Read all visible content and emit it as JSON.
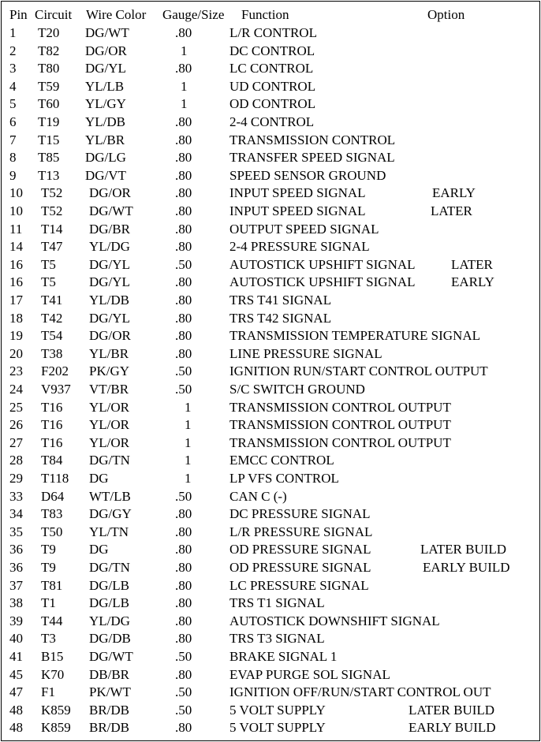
{
  "header": {
    "pin": "Pin",
    "circuit": "Circuit",
    "wire_color": "Wire Color",
    "gauge": "Gauge/Size",
    "function": "Function",
    "option": "Option"
  },
  "rows": [
    {
      "pin": "1",
      "circuit": "T20",
      "wire": "DG/WT",
      "gauge": ".80",
      "function": "L/R CONTROL",
      "option": ""
    },
    {
      "pin": "2",
      "circuit": "T82",
      "wire": "DG/OR",
      "gauge": "1",
      "function": "DC CONTROL",
      "option": ""
    },
    {
      "pin": "3",
      "circuit": "T80",
      "wire": "DG/YL",
      "gauge": ".80",
      "function": "LC CONTROL",
      "option": ""
    },
    {
      "pin": "4",
      "circuit": "T59",
      "wire": "YL/LB",
      "gauge": "1",
      "function": "UD CONTROL",
      "option": ""
    },
    {
      "pin": "5",
      "circuit": "T60",
      "wire": "YL/GY",
      "gauge": "1",
      "function": "OD CONTROL",
      "option": ""
    },
    {
      "pin": "6",
      "circuit": "T19",
      "wire": "YL/DB",
      "gauge": ".80",
      "function": "2-4 CONTROL",
      "option": ""
    },
    {
      "pin": "7",
      "circuit": "T15",
      "wire": "YL/BR",
      "gauge": ".80",
      "function": "TRANSMISSION CONTROL",
      "option": ""
    },
    {
      "pin": "8",
      "circuit": "T85",
      "wire": "DG/LG",
      "gauge": ".80",
      "function": "TRANSFER SPEED SIGNAL",
      "option": ""
    },
    {
      "pin": "9",
      "circuit": "T13",
      "wire": "DG/VT",
      "gauge": ".80",
      "function": "SPEED SENSOR GROUND",
      "option": ""
    },
    {
      "pin": "10",
      "circuit": "T52",
      "wire": "DG/OR",
      "gauge": ".80",
      "function": "INPUT SPEED SIGNAL",
      "option": "EARLY"
    },
    {
      "pin": "10",
      "circuit": "T52",
      "wire": "DG/WT",
      "gauge": ".80",
      "function": "INPUT SPEED SIGNAL",
      "option": "LATER"
    },
    {
      "pin": "11",
      "circuit": "T14",
      "wire": "DG/BR",
      "gauge": ".80",
      "function": "OUTPUT SPEED SIGNAL",
      "option": ""
    },
    {
      "pin": "14",
      "circuit": "T47",
      "wire": "YL/DG",
      "gauge": ".80",
      "function": "2-4 PRESSURE SIGNAL",
      "option": ""
    },
    {
      "pin": "16",
      "circuit": "T5",
      "wire": "DG/YL",
      "gauge": ".50",
      "function": "AUTOSTICK UPSHIFT SIGNAL",
      "option": "LATER"
    },
    {
      "pin": "16",
      "circuit": "T5",
      "wire": "DG/YL",
      "gauge": ".80",
      "function": "AUTOSTICK UPSHIFT SIGNAL",
      "option": "EARLY"
    },
    {
      "pin": "17",
      "circuit": "T41",
      "wire": "YL/DB",
      "gauge": ".80",
      "function": "TRS T41 SIGNAL",
      "option": ""
    },
    {
      "pin": "18",
      "circuit": "T42",
      "wire": "DG/YL",
      "gauge": ".80",
      "function": "TRS T42 SIGNAL",
      "option": ""
    },
    {
      "pin": "19",
      "circuit": "T54",
      "wire": "DG/OR",
      "gauge": ".80",
      "function": "TRANSMISSION TEMPERATURE SIGNAL",
      "option": ""
    },
    {
      "pin": "20",
      "circuit": "T38",
      "wire": "YL/BR",
      "gauge": ".80",
      "function": "LINE PRESSURE SIGNAL",
      "option": ""
    },
    {
      "pin": "23",
      "circuit": "F202",
      "wire": "PK/GY",
      "gauge": ".50",
      "function": "IGNITION RUN/START CONTROL OUTPUT",
      "option": ""
    },
    {
      "pin": "24",
      "circuit": "V937",
      "wire": "VT/BR",
      "gauge": ".50",
      "function": "S/C SWITCH GROUND",
      "option": ""
    },
    {
      "pin": "25",
      "circuit": "T16",
      "wire": "YL/OR",
      "gauge": "1",
      "function": "TRANSMISSION CONTROL OUTPUT",
      "option": ""
    },
    {
      "pin": "26",
      "circuit": "T16",
      "wire": "YL/OR",
      "gauge": "1",
      "function": "TRANSMISSION CONTROL OUTPUT",
      "option": ""
    },
    {
      "pin": "27",
      "circuit": "T16",
      "wire": "YL/OR",
      "gauge": "1",
      "function": "TRANSMISSION CONTROL OUTPUT",
      "option": ""
    },
    {
      "pin": "28",
      "circuit": "T84",
      "wire": "DG/TN",
      "gauge": "1",
      "function": "EMCC CONTROL",
      "option": ""
    },
    {
      "pin": "29",
      "circuit": "T118",
      "wire": "DG",
      "gauge": "1",
      "function": "LP VFS CONTROL",
      "option": ""
    },
    {
      "pin": "33",
      "circuit": "D64",
      "wire": "WT/LB",
      "gauge": ".50",
      "function": "CAN C (-)",
      "option": ""
    },
    {
      "pin": "34",
      "circuit": "T83",
      "wire": "DG/GY",
      "gauge": ".80",
      "function": "DC PRESSURE SIGNAL",
      "option": ""
    },
    {
      "pin": "35",
      "circuit": "T50",
      "wire": "YL/TN",
      "gauge": ".80",
      "function": "L/R PRESSURE SIGNAL",
      "option": ""
    },
    {
      "pin": "36",
      "circuit": "T9",
      "wire": "DG",
      "gauge": ".80",
      "function": "OD PRESSURE SIGNAL",
      "option": "LATER BUILD"
    },
    {
      "pin": "36",
      "circuit": "T9",
      "wire": "DG/TN",
      "gauge": ".80",
      "function": "OD PRESSURE SIGNAL",
      "option": "EARLY BUILD"
    },
    {
      "pin": "37",
      "circuit": "T81",
      "wire": "DG/LB",
      "gauge": ".80",
      "function": "LC PRESSURE SIGNAL",
      "option": ""
    },
    {
      "pin": "38",
      "circuit": "T1",
      "wire": "DG/LB",
      "gauge": ".80",
      "function": "TRS T1 SIGNAL",
      "option": ""
    },
    {
      "pin": "39",
      "circuit": "T44",
      "wire": "YL/DG",
      "gauge": ".80",
      "function": "AUTOSTICK DOWNSHIFT SIGNAL",
      "option": ""
    },
    {
      "pin": "40",
      "circuit": "T3",
      "wire": "DG/DB",
      "gauge": ".80",
      "function": "TRS T3 SIGNAL",
      "option": ""
    },
    {
      "pin": "41",
      "circuit": "B15",
      "wire": "DG/WT",
      "gauge": ".50",
      "function": "BRAKE SIGNAL 1",
      "option": ""
    },
    {
      "pin": "45",
      "circuit": "K70",
      "wire": "DB/BR",
      "gauge": ".80",
      "function": "EVAP PURGE SOL SIGNAL",
      "option": ""
    },
    {
      "pin": "47",
      "circuit": "F1",
      "wire": "PK/WT",
      "gauge": ".50",
      "function": "IGNITION OFF/RUN/START CONTROL OUT",
      "option": ""
    },
    {
      "pin": "48",
      "circuit": "K859",
      "wire": "BR/DB",
      "gauge": ".50",
      "function": "5 VOLT SUPPLY",
      "option": "LATER BUILD"
    },
    {
      "pin": "48",
      "circuit": "K859",
      "wire": "BR/DB",
      "gauge": ".80",
      "function": "5 VOLT SUPPLY",
      "option": "EARLY BUILD"
    }
  ]
}
